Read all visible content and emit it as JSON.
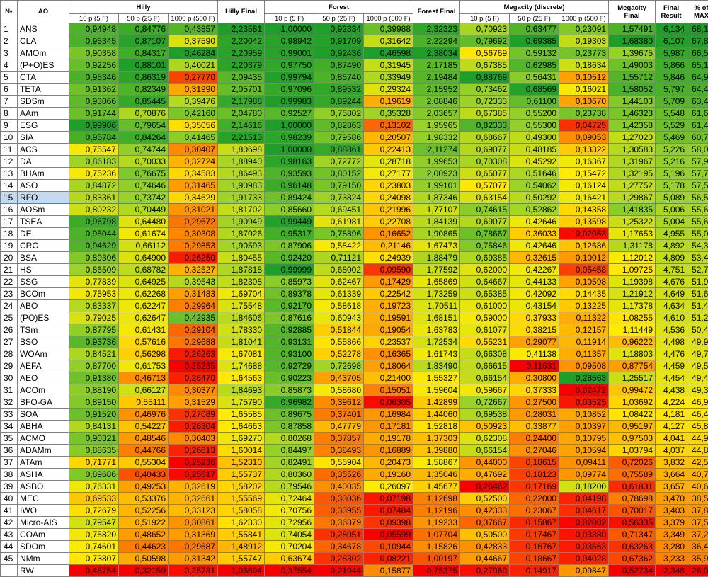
{
  "headers": {
    "no": "№",
    "ao": "AO",
    "hilly": "Hilly",
    "hilly_final": "Hilly Final",
    "forest": "Forest",
    "forest_final": "Forest Final",
    "megacity": "Megacity (discrete)",
    "megacity_final": "Megacity Final",
    "final_result": "Final Result",
    "pct_max": "% of MAX",
    "sub": [
      "10 p (5 F)",
      "50 p (25 F)",
      "1000 p (500 F)"
    ]
  },
  "highlight_row": 14,
  "columns_order": [
    "h10",
    "h50",
    "h1000",
    "hf",
    "f10",
    "f50",
    "f1000",
    "ff",
    "m10",
    "m50",
    "m1000",
    "mf",
    "fr",
    "pct"
  ],
  "rows": [
    {
      "no": "1",
      "name": "ANS",
      "v": [
        "0,94948",
        "0,84776",
        "0,43857",
        "2,23581",
        "1,00000",
        "0,92334",
        "0,39988",
        "2,32323",
        "0,70923",
        "0,63477",
        "0,23091",
        "1,57491",
        "6,134",
        "68,15"
      ]
    },
    {
      "no": "2",
      "name": "CLA",
      "v": [
        "0,95345",
        "0,87107",
        "0,37590",
        "2,20042",
        "0,98942",
        "0,91709",
        "0,31642",
        "2,22294",
        "0,79692",
        "0,69385",
        "0,19303",
        "1,68380",
        "6,107",
        "67,86"
      ]
    },
    {
      "no": "3",
      "name": "AMOm",
      "v": [
        "0,90358",
        "0,84317",
        "0,46284",
        "2,20959",
        "0,99001",
        "0,92436",
        "0,46598",
        "2,38034",
        "0,56769",
        "0,59132",
        "0,23773",
        "1,39675",
        "5,987",
        "66,52"
      ]
    },
    {
      "no": "4",
      "name": "(P+O)ES",
      "v": [
        "0,92256",
        "0,88101",
        "0,40021",
        "2,20379",
        "0,97750",
        "0,87490",
        "0,31945",
        "2,17185",
        "0,67385",
        "0,62985",
        "0,18634",
        "1,49003",
        "5,866",
        "65,17"
      ]
    },
    {
      "no": "5",
      "name": "CTA",
      "v": [
        "0,95346",
        "0,86319",
        "0,27770",
        "2,09435",
        "0,99794",
        "0,85740",
        "0,33949",
        "2,19484",
        "0,88769",
        "0,56431",
        "0,10512",
        "1,55712",
        "5,846",
        "64,96"
      ]
    },
    {
      "no": "6",
      "name": "TETA",
      "v": [
        "0,91362",
        "0,82349",
        "0,31990",
        "2,05701",
        "0,97096",
        "0,89532",
        "0,29324",
        "2,15952",
        "0,73462",
        "0,68569",
        "0,16021",
        "1,58052",
        "5,797",
        "64,41"
      ]
    },
    {
      "no": "7",
      "name": "SDSm",
      "v": [
        "0,93066",
        "0,85445",
        "0,39476",
        "2,17988",
        "0,99983",
        "0,89244",
        "0,19619",
        "2,08846",
        "0,72333",
        "0,61100",
        "0,10670",
        "1,44103",
        "5,709",
        "63,44"
      ]
    },
    {
      "no": "8",
      "name": "AAm",
      "v": [
        "0,91744",
        "0,70876",
        "0,42160",
        "2,04780",
        "0,92527",
        "0,75802",
        "0,35328",
        "2,03657",
        "0,67385",
        "0,55200",
        "0,23738",
        "1,46323",
        "5,548",
        "61,64"
      ]
    },
    {
      "no": "9",
      "name": "ESG",
      "v": [
        "0,99906",
        "0,79654",
        "0,35056",
        "2,14616",
        "1,00000",
        "0,82863",
        "0,13102",
        "1,95965",
        "0,82333",
        "0,55300",
        "0,04725",
        "1,42358",
        "5,529",
        "61,44"
      ]
    },
    {
      "no": "10",
      "name": "SIA",
      "v": [
        "0,95784",
        "0,84264",
        "0,41465",
        "2,21513",
        "0,98239",
        "0,79586",
        "0,20507",
        "1,98332",
        "0,68667",
        "0,49300",
        "0,09053",
        "1,27020",
        "5,469",
        "60,76"
      ]
    },
    {
      "no": "11",
      "name": "ACS",
      "v": [
        "0,75547",
        "0,74744",
        "0,30407",
        "1,80698",
        "1,00000",
        "0,88861",
        "0,22413",
        "2,11274",
        "0,69077",
        "0,48185",
        "0,13322",
        "1,30583",
        "5,226",
        "58,06"
      ]
    },
    {
      "no": "12",
      "name": "DA",
      "v": [
        "0,86183",
        "0,70033",
        "0,32724",
        "1,88940",
        "0,98163",
        "0,72772",
        "0,28718",
        "1,99653",
        "0,70308",
        "0,45292",
        "0,16367",
        "1,31967",
        "5,216",
        "57,95"
      ]
    },
    {
      "no": "13",
      "name": "BHAm",
      "v": [
        "0,75236",
        "0,76675",
        "0,34583",
        "1,86493",
        "0,93593",
        "0,80152",
        "0,27177",
        "2,00923",
        "0,65077",
        "0,51646",
        "0,15472",
        "1,32195",
        "5,196",
        "57,73"
      ]
    },
    {
      "no": "14",
      "name": "ASO",
      "v": [
        "0,84872",
        "0,74646",
        "0,31465",
        "1,90983",
        "0,96148",
        "0,79150",
        "0,23803",
        "1,99101",
        "0,57077",
        "0,54062",
        "0,16124",
        "1,27752",
        "5,178",
        "57,54"
      ]
    },
    {
      "no": "15",
      "name": "RFO",
      "v": [
        "0,83361",
        "0,73742",
        "0,34629",
        "1,91733",
        "0,89424",
        "0,73824",
        "0,24098",
        "1,87346",
        "0,63154",
        "0,50292",
        "0,16421",
        "1,29867",
        "5,089",
        "56,55"
      ]
    },
    {
      "no": "16",
      "name": "AOSm",
      "v": [
        "0,80232",
        "0,70449",
        "0,31021",
        "1,81702",
        "0,85660",
        "0,69451",
        "0,21996",
        "1,77107",
        "0,74615",
        "0,52862",
        "0,14358",
        "1,41835",
        "5,006",
        "55,63"
      ]
    },
    {
      "no": "17",
      "name": "TSEA",
      "v": [
        "0,96798",
        "0,64480",
        "0,29672",
        "1,90949",
        "0,99449",
        "0,61981",
        "0,22708",
        "1,84139",
        "0,69077",
        "0,42646",
        "0,13598",
        "1,25322",
        "5,004",
        "55,60"
      ]
    },
    {
      "no": "18",
      "name": "DE",
      "v": [
        "0,95044",
        "0,61674",
        "0,30308",
        "1,87026",
        "0,95317",
        "0,78896",
        "0,16652",
        "1,90865",
        "0,78667",
        "0,36033",
        "0,02953",
        "1,17653",
        "4,955",
        "55,06"
      ]
    },
    {
      "no": "19",
      "name": "CRO",
      "v": [
        "0,94629",
        "0,66112",
        "0,29853",
        "1,90593",
        "0,87906",
        "0,58422",
        "0,21146",
        "1,67473",
        "0,75846",
        "0,42646",
        "0,12686",
        "1,31178",
        "4,892",
        "54,36"
      ]
    },
    {
      "no": "20",
      "name": "BSA",
      "v": [
        "0,89306",
        "0,64900",
        "0,26250",
        "1,80455",
        "0,92420",
        "0,71121",
        "0,24939",
        "1,88479",
        "0,69385",
        "0,32615",
        "0,10012",
        "1,12012",
        "4,809",
        "53,44"
      ]
    },
    {
      "no": "21",
      "name": "HS",
      "v": [
        "0,86509",
        "0,68782",
        "0,32527",
        "1,87818",
        "0,99999",
        "0,68002",
        "0,09590",
        "1,77592",
        "0,62000",
        "0,42267",
        "0,05458",
        "1,09725",
        "4,751",
        "52,79"
      ]
    },
    {
      "no": "22",
      "name": "SSG",
      "v": [
        "0,77839",
        "0,64925",
        "0,39543",
        "1,82308",
        "0,85973",
        "0,62467",
        "0,17429",
        "1,65869",
        "0,64667",
        "0,44133",
        "0,10598",
        "1,19398",
        "4,676",
        "51,95"
      ]
    },
    {
      "no": "23",
      "name": "BCOm",
      "v": [
        "0,75953",
        "0,62268",
        "0,31483",
        "1,69704",
        "0,89378",
        "0,61339",
        "0,22542",
        "1,73259",
        "0,65385",
        "0,42092",
        "0,14435",
        "1,21912",
        "4,649",
        "51,65"
      ]
    },
    {
      "no": "24",
      "name": "ABO",
      "v": [
        "0,83337",
        "0,62247",
        "0,29964",
        "1,75548",
        "0,92170",
        "0,58618",
        "0,19723",
        "1,70511",
        "0,61000",
        "0,43154",
        "0,13225",
        "1,17378",
        "4,634",
        "51,49"
      ]
    },
    {
      "no": "25",
      "name": "(PO)ES",
      "v": [
        "0,79025",
        "0,62647",
        "0,42935",
        "1,84606",
        "0,87616",
        "0,60943",
        "0,19591",
        "1,68151",
        "0,59000",
        "0,37933",
        "0,11322",
        "1,08255",
        "4,610",
        "51,22"
      ]
    },
    {
      "no": "26",
      "name": "TSm",
      "v": [
        "0,87795",
        "0,61431",
        "0,29104",
        "1,78330",
        "0,92885",
        "0,51844",
        "0,19054",
        "1,63783",
        "0,61077",
        "0,38215",
        "0,12157",
        "1,11449",
        "4,536",
        "50,40"
      ]
    },
    {
      "no": "27",
      "name": "BSO",
      "v": [
        "0,93736",
        "0,57616",
        "0,29688",
        "1,81041",
        "0,93131",
        "0,55866",
        "0,23537",
        "1,72534",
        "0,55231",
        "0,29077",
        "0,11914",
        "0,96222",
        "4,498",
        "49,98"
      ]
    },
    {
      "no": "28",
      "name": "WOAm",
      "v": [
        "0,84521",
        "0,56298",
        "0,26263",
        "1,67081",
        "0,93100",
        "0,52278",
        "0,16365",
        "1,61743",
        "0,66308",
        "0,41138",
        "0,11357",
        "1,18803",
        "4,476",
        "49,74"
      ]
    },
    {
      "no": "29",
      "name": "AEFA",
      "v": [
        "0,87700",
        "0,61753",
        "0,25235",
        "1,74688",
        "0,92729",
        "0,72698",
        "0,18064",
        "1,83490",
        "0,66615",
        "0,11631",
        "0,09508",
        "0,87754",
        "4,459",
        "49,55"
      ]
    },
    {
      "no": "30",
      "name": "AEO",
      "v": [
        "0,91380",
        "0,46713",
        "0,26470",
        "1,64563",
        "0,90223",
        "0,43705",
        "0,21400",
        "1,55327",
        "0,66154",
        "0,30800",
        "0,28563",
        "1,25517",
        "4,454",
        "49,49"
      ]
    },
    {
      "no": "31",
      "name": "ACOm",
      "v": [
        "0,88190",
        "0,66127",
        "0,30377",
        "1,84693",
        "0,85873",
        "0,58680",
        "0,15051",
        "1,59604",
        "0,59667",
        "0,37333",
        "0,02472",
        "0,99472",
        "4,438",
        "49,31"
      ]
    },
    {
      "no": "32",
      "name": "BFO-GA",
      "v": [
        "0,89150",
        "0,55111",
        "0,31529",
        "1,75790",
        "0,96982",
        "0,39612",
        "0,06305",
        "1,42899",
        "0,72667",
        "0,27500",
        "0,03525",
        "1,03692",
        "4,224",
        "46,93"
      ]
    },
    {
      "no": "33",
      "name": "SOA",
      "v": [
        "0,91520",
        "0,46976",
        "0,27089",
        "1,65585",
        "0,89675",
        "0,37401",
        "0,16984",
        "1,44060",
        "0,69538",
        "0,28031",
        "0,10852",
        "1,08422",
        "4,181",
        "46,45"
      ]
    },
    {
      "no": "34",
      "name": "ABHA",
      "v": [
        "0,84131",
        "0,54227",
        "0,26304",
        "1,64663",
        "0,87858",
        "0,47779",
        "0,17181",
        "1,52818",
        "0,50923",
        "0,33877",
        "0,10397",
        "0,95197",
        "4,127",
        "45,85"
      ]
    },
    {
      "no": "35",
      "name": "ACMO",
      "v": [
        "0,90321",
        "0,48546",
        "0,30403",
        "1,69270",
        "0,80268",
        "0,37857",
        "0,19178",
        "1,37303",
        "0,62308",
        "0,24400",
        "0,10795",
        "0,97503",
        "4,041",
        "44,90"
      ]
    },
    {
      "no": "36",
      "name": "ADAMm",
      "v": [
        "0,88635",
        "0,44766",
        "0,26613",
        "1,60014",
        "0,84497",
        "0,38493",
        "0,16889",
        "1,39880",
        "0,66154",
        "0,27046",
        "0,10594",
        "1,03794",
        "4,037",
        "44,85"
      ]
    },
    {
      "no": "37",
      "name": "ATAm",
      "v": [
        "0,71771",
        "0,55304",
        "0,25236",
        "1,52310",
        "0,82491",
        "0,55904",
        "0,20473",
        "1,58867",
        "0,44000",
        "0,18615",
        "0,09411",
        "0,72026",
        "3,832",
        "42,58"
      ]
    },
    {
      "no": "38",
      "name": "ASHA",
      "v": [
        "0,89686",
        "0,40433",
        "0,25617",
        "1,55737",
        "0,80360",
        "0,35526",
        "0,19160",
        "1,35046",
        "0,47692",
        "0,18123",
        "0,09774",
        "0,75589",
        "3,664",
        "40,71"
      ]
    },
    {
      "no": "39",
      "name": "ASBO",
      "v": [
        "0,76331",
        "0,49253",
        "0,32619",
        "1,58202",
        "0,79546",
        "0,40035",
        "0,26097",
        "1,45677",
        "0,26462",
        "0,17169",
        "0,18200",
        "0,61831",
        "3,657",
        "40,63"
      ]
    },
    {
      "no": "40",
      "name": "MEC",
      "v": [
        "0,69533",
        "0,53376",
        "0,32661",
        "1,55569",
        "0,72464",
        "0,33036",
        "0,07198",
        "1,12698",
        "0,52500",
        "0,22000",
        "0,04198",
        "0,78698",
        "3,470",
        "38,55"
      ]
    },
    {
      "no": "41",
      "name": "IWO",
      "v": [
        "0,72679",
        "0,52256",
        "0,33123",
        "1,58058",
        "0,70756",
        "0,33955",
        "0,07484",
        "1,12196",
        "0,42333",
        "0,23067",
        "0,04617",
        "0,70017",
        "3,403",
        "37,81"
      ]
    },
    {
      "no": "42",
      "name": "Micro-AIS",
      "v": [
        "0,79547",
        "0,51922",
        "0,30861",
        "1,62330",
        "0,72956",
        "0,36879",
        "0,09398",
        "1,19233",
        "0,37667",
        "0,15867",
        "0,02802",
        "0,56335",
        "3,379",
        "37,54"
      ]
    },
    {
      "no": "43",
      "name": "COAm",
      "v": [
        "0,75820",
        "0,48652",
        "0,31369",
        "1,55841",
        "0,74054",
        "0,28051",
        "0,05599",
        "1,07704",
        "0,50500",
        "0,17467",
        "0,03380",
        "0,71347",
        "3,349",
        "37,21"
      ]
    },
    {
      "no": "44",
      "name": "SDOm",
      "v": [
        "0,74601",
        "0,44623",
        "0,29687",
        "1,48912",
        "0,70204",
        "0,34678",
        "0,10944",
        "1,15826",
        "0,42833",
        "0,16767",
        "0,03663",
        "0,63263",
        "3,280",
        "36,44"
      ]
    },
    {
      "no": "45",
      "name": "NMm",
      "v": [
        "0,73807",
        "0,50598",
        "0,31342",
        "1,55747",
        "0,63674",
        "0,28302",
        "0,08221",
        "1,00197",
        "0,44667",
        "0,18667",
        "0,04028",
        "0,67362",
        "3,233",
        "35,92"
      ]
    },
    {
      "no": "",
      "name": "RW",
      "v": [
        "0,48754",
        "0,32159",
        "0,25781",
        "1,06694",
        "0,37554",
        "0,21944",
        "0,15877",
        "0,75375",
        "0,27969",
        "0,14917",
        "0,09847",
        "0,52734",
        "2,348",
        "26,09"
      ]
    }
  ]
}
